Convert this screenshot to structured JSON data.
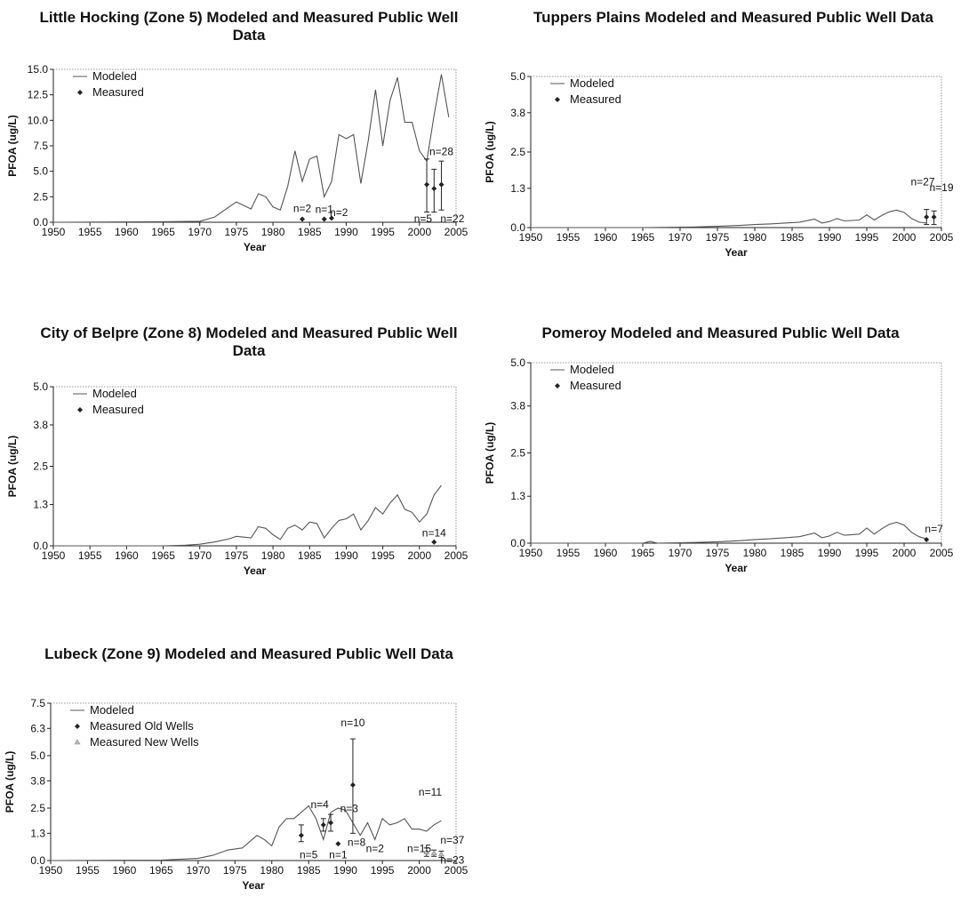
{
  "chart_data": [
    {
      "type": "line",
      "title": "Little Hocking (Zone 5) Modeled and Measured Public Well Data",
      "xlabel": "Year",
      "ylabel": "PFOA (ug/L)",
      "xlim": [
        1950,
        2005
      ],
      "ylim": [
        0,
        15
      ],
      "x_ticks": [
        1950,
        1955,
        1960,
        1965,
        1970,
        1975,
        1980,
        1985,
        1990,
        1995,
        2000,
        2005
      ],
      "y_ticks": [
        "0.0",
        "2.5",
        "5.0",
        "7.5",
        "10.0",
        "12.5",
        "15.0"
      ],
      "legend_position": "top-left",
      "grid": false,
      "series": [
        {
          "name": "Modeled",
          "kind": "line",
          "x": [
            1950,
            1965,
            1970,
            1972,
            1973,
            1975,
            1977,
            1978,
            1979,
            1980,
            1981,
            1982,
            1983,
            1984,
            1985,
            1986,
            1987,
            1988,
            1989,
            1990,
            1991,
            1992,
            1993,
            1994,
            1995,
            1996,
            1997,
            1998,
            1999,
            2000,
            2001,
            2002,
            2003,
            2004
          ],
          "y": [
            0,
            0.05,
            0.1,
            0.5,
            1.0,
            2.0,
            1.3,
            2.8,
            2.5,
            1.5,
            1.2,
            3.5,
            7.0,
            4.0,
            6.2,
            6.5,
            2.5,
            4.0,
            8.6,
            8.2,
            8.6,
            3.8,
            8.0,
            13.0,
            7.5,
            12.0,
            14.2,
            9.8,
            9.8,
            7.0,
            6.0,
            10.5,
            14.5,
            10.3
          ]
        },
        {
          "name": "Measured",
          "kind": "points",
          "x": [
            1984,
            1987,
            1988,
            2001,
            2002,
            2003
          ],
          "y": [
            0.3,
            0.3,
            0.4,
            3.7,
            3.3,
            3.7
          ],
          "err_low": [
            0,
            0,
            0,
            1.0,
            1.0,
            1.2
          ],
          "err_high": [
            0,
            0,
            0,
            6.2,
            5.2,
            6.0
          ]
        }
      ],
      "annotations": [
        {
          "text": "n=2",
          "x": 1984,
          "y": 1.0
        },
        {
          "text": "n=1",
          "x": 1987,
          "y": 0.9
        },
        {
          "text": "n=2",
          "x": 1989,
          "y": 0.6
        },
        {
          "text": "n=5",
          "x": 2000.5,
          "y": 0.0
        },
        {
          "text": "n=28",
          "x": 2003,
          "y": 6.6
        },
        {
          "text": "n=22",
          "x": 2004.5,
          "y": 0.0
        }
      ]
    },
    {
      "type": "line",
      "title": "Tuppers Plains Modeled and Measured Public Well Data",
      "xlabel": "Year",
      "ylabel": "PFOA (ug/L)",
      "xlim": [
        1950,
        2005
      ],
      "ylim": [
        0,
        5
      ],
      "x_ticks": [
        1950,
        1955,
        1960,
        1965,
        1970,
        1975,
        1980,
        1985,
        1990,
        1995,
        2000,
        2005
      ],
      "y_ticks": [
        "0.0",
        "1.3",
        "2.5",
        "3.8",
        "5.0"
      ],
      "legend_position": "top-left",
      "grid": false,
      "series": [
        {
          "name": "Modeled",
          "kind": "line",
          "x": [
            1950,
            1965,
            1972,
            1975,
            1978,
            1980,
            1982,
            1984,
            1986,
            1988,
            1989,
            1990,
            1991,
            1992,
            1994,
            1995,
            1996,
            1997,
            1998,
            1999,
            2000,
            2001,
            2002,
            2003
          ],
          "y": [
            0,
            0.0,
            0.02,
            0.04,
            0.07,
            0.1,
            0.12,
            0.15,
            0.18,
            0.28,
            0.15,
            0.2,
            0.3,
            0.22,
            0.25,
            0.42,
            0.25,
            0.4,
            0.52,
            0.58,
            0.5,
            0.3,
            0.18,
            0.15
          ]
        },
        {
          "name": "Measured",
          "kind": "points",
          "x": [
            2003,
            2004
          ],
          "y": [
            0.35,
            0.35
          ],
          "err_low": [
            0.1,
            0.1
          ],
          "err_high": [
            0.6,
            0.55
          ]
        }
      ],
      "annotations": [
        {
          "text": "n=27",
          "x": 2002.5,
          "y": 1.4
        },
        {
          "text": "n=19",
          "x": 2005,
          "y": 1.2
        }
      ]
    },
    {
      "type": "line",
      "title": "City of Belpre (Zone 8) Modeled and Measured Public Well Data",
      "xlabel": "Year",
      "ylabel": "PFOA (ug/L)",
      "xlim": [
        1950,
        2005
      ],
      "ylim": [
        0,
        5
      ],
      "x_ticks": [
        1950,
        1955,
        1960,
        1965,
        1970,
        1975,
        1980,
        1985,
        1990,
        1995,
        2000,
        2005
      ],
      "y_ticks": [
        "0.0",
        "1.3",
        "2.5",
        "3.8",
        "5.0"
      ],
      "legend_position": "top-left",
      "grid": false,
      "series": [
        {
          "name": "Modeled",
          "kind": "line",
          "x": [
            1950,
            1965,
            1968,
            1970,
            1972,
            1974,
            1975,
            1977,
            1978,
            1979,
            1980,
            1981,
            1982,
            1983,
            1984,
            1985,
            1986,
            1987,
            1988,
            1989,
            1990,
            1991,
            1992,
            1993,
            1994,
            1995,
            1996,
            1997,
            1998,
            1999,
            2000,
            2001,
            2002,
            2003
          ],
          "y": [
            0,
            0.0,
            0.02,
            0.05,
            0.12,
            0.22,
            0.3,
            0.25,
            0.6,
            0.55,
            0.35,
            0.2,
            0.55,
            0.65,
            0.5,
            0.75,
            0.7,
            0.25,
            0.55,
            0.8,
            0.85,
            1.0,
            0.5,
            0.8,
            1.2,
            1.0,
            1.35,
            1.6,
            1.15,
            1.05,
            0.75,
            1.0,
            1.6,
            1.9
          ]
        },
        {
          "name": "Measured",
          "kind": "points",
          "x": [
            2002
          ],
          "y": [
            0.12
          ],
          "err_low": [
            0.12
          ],
          "err_high": [
            0.12
          ]
        }
      ],
      "annotations": [
        {
          "text": "n=14",
          "x": 2002,
          "y": 0.3
        }
      ]
    },
    {
      "type": "line",
      "title": "Pomeroy Modeled and Measured Public Well Data",
      "xlabel": "Year",
      "ylabel": "PFOA (ug/L)",
      "xlim": [
        1950,
        2005
      ],
      "ylim": [
        0,
        5
      ],
      "x_ticks": [
        1950,
        1955,
        1960,
        1965,
        1970,
        1975,
        1980,
        1985,
        1990,
        1995,
        2000,
        2005
      ],
      "y_ticks": [
        "0.0",
        "1.3",
        "2.5",
        "3.8",
        "5.0"
      ],
      "legend_position": "top-left",
      "grid": false,
      "series": [
        {
          "name": "Modeled",
          "kind": "line",
          "x": [
            1950,
            1965,
            1966,
            1967,
            1972,
            1975,
            1978,
            1980,
            1982,
            1984,
            1986,
            1988,
            1989,
            1990,
            1991,
            1992,
            1994,
            1995,
            1996,
            1997,
            1998,
            1999,
            2000,
            2001,
            2002,
            2003
          ],
          "y": [
            0,
            0.0,
            0.05,
            0.0,
            0.02,
            0.04,
            0.07,
            0.1,
            0.12,
            0.15,
            0.18,
            0.28,
            0.15,
            0.2,
            0.3,
            0.22,
            0.25,
            0.42,
            0.25,
            0.4,
            0.52,
            0.58,
            0.5,
            0.3,
            0.18,
            0.12
          ]
        },
        {
          "name": "Measured",
          "kind": "points",
          "x": [
            2003
          ],
          "y": [
            0.1
          ],
          "err_low": [
            0.1
          ],
          "err_high": [
            0.1
          ]
        }
      ],
      "annotations": [
        {
          "text": "n=7",
          "x": 2004,
          "y": 0.3
        }
      ]
    },
    {
      "type": "line",
      "title": "Lubeck (Zone 9) Modeled and Measured Public Well Data",
      "xlabel": "Year",
      "ylabel": "PFOA (ug/L)",
      "xlim": [
        1950,
        2005
      ],
      "ylim": [
        0,
        7.5
      ],
      "x_ticks": [
        1950,
        1955,
        1960,
        1965,
        1970,
        1975,
        1980,
        1985,
        1990,
        1995,
        2000,
        2005
      ],
      "y_ticks": [
        "0.0",
        "1.3",
        "2.5",
        "3.8",
        "5.0",
        "6.3",
        "7.5"
      ],
      "legend_position": "top-left",
      "grid": false,
      "series": [
        {
          "name": "Modeled",
          "kind": "line",
          "x": [
            1950,
            1965,
            1970,
            1972,
            1974,
            1976,
            1978,
            1979,
            1980,
            1981,
            1982,
            1983,
            1984,
            1985,
            1986,
            1987,
            1988,
            1989,
            1990,
            1991,
            1992,
            1993,
            1994,
            1995,
            1996,
            1997,
            1998,
            1999,
            2000,
            2001,
            2002,
            2003
          ],
          "y": [
            0,
            0.02,
            0.1,
            0.25,
            0.5,
            0.6,
            1.2,
            1.0,
            0.7,
            1.6,
            2.0,
            2.0,
            2.3,
            2.6,
            2.0,
            1.0,
            2.3,
            2.5,
            2.4,
            1.8,
            1.2,
            1.8,
            1.0,
            2.0,
            1.7,
            1.8,
            2.0,
            1.5,
            1.5,
            1.4,
            1.7,
            1.9
          ]
        },
        {
          "name": "Measured Old Wells",
          "kind": "points",
          "x": [
            1984,
            1987,
            1988,
            1989,
            1991
          ],
          "y": [
            1.2,
            1.7,
            1.8,
            0.8,
            3.6
          ],
          "err_low": [
            0.9,
            1.4,
            1.4,
            0.8,
            1.3
          ],
          "err_high": [
            1.7,
            2.0,
            2.2,
            0.8,
            5.8
          ]
        },
        {
          "name": "Measured New Wells",
          "kind": "points",
          "x": [
            2001,
            2002,
            2003
          ],
          "y": [
            0.4,
            0.35,
            0.3
          ],
          "err_low": [
            0.2,
            0.2,
            0.15
          ],
          "err_high": [
            0.6,
            0.5,
            0.45
          ]
        }
      ],
      "annotations": [
        {
          "text": "n=10",
          "x": 1991,
          "y": 6.4
        },
        {
          "text": "n=4",
          "x": 1986.5,
          "y": 2.5
        },
        {
          "text": "n=3",
          "x": 1990.5,
          "y": 2.3
        },
        {
          "text": "n=5",
          "x": 1985,
          "y": 0.1
        },
        {
          "text": "n=8",
          "x": 1991.5,
          "y": 0.7
        },
        {
          "text": "n=1",
          "x": 1989,
          "y": 0.1
        },
        {
          "text": "n=2",
          "x": 1994,
          "y": 0.4
        },
        {
          "text": "n=11",
          "x": 2001.5,
          "y": 3.1
        },
        {
          "text": "n=15",
          "x": 2000,
          "y": 0.4
        },
        {
          "text": "n=37",
          "x": 2004.5,
          "y": 0.8
        },
        {
          "text": "n=23",
          "x": 2004.5,
          "y": -0.15
        }
      ]
    }
  ]
}
